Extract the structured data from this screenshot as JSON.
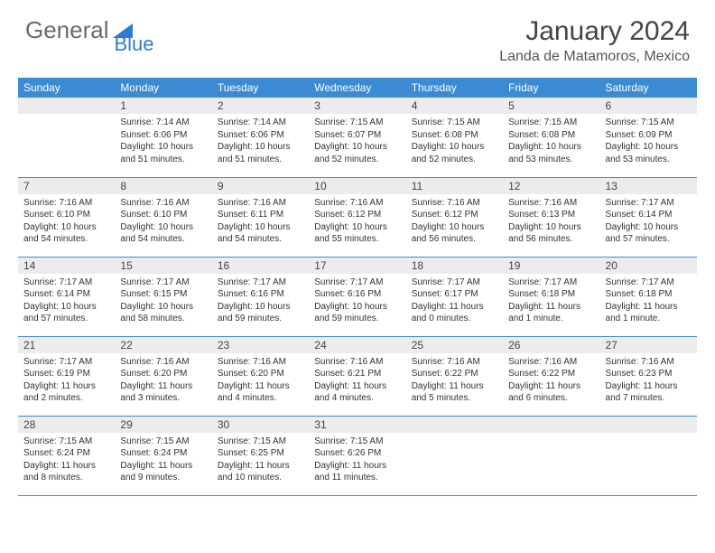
{
  "logo": {
    "text1": "General",
    "text2": "Blue"
  },
  "title": "January 2024",
  "location": "Landa de Matamoros, Mexico",
  "colors": {
    "header_bg": "#3b8bd4",
    "header_text": "#ffffff",
    "daynum_bg": "#ececec",
    "border": "#3b8bd4",
    "logo_gray": "#6b6b6b",
    "logo_blue": "#2e7cd1"
  },
  "daynames": [
    "Sunday",
    "Monday",
    "Tuesday",
    "Wednesday",
    "Thursday",
    "Friday",
    "Saturday"
  ],
  "weeks": [
    [
      {
        "n": "",
        "lines": []
      },
      {
        "n": "1",
        "lines": [
          "Sunrise: 7:14 AM",
          "Sunset: 6:06 PM",
          "Daylight: 10 hours",
          "and 51 minutes."
        ]
      },
      {
        "n": "2",
        "lines": [
          "Sunrise: 7:14 AM",
          "Sunset: 6:06 PM",
          "Daylight: 10 hours",
          "and 51 minutes."
        ]
      },
      {
        "n": "3",
        "lines": [
          "Sunrise: 7:15 AM",
          "Sunset: 6:07 PM",
          "Daylight: 10 hours",
          "and 52 minutes."
        ]
      },
      {
        "n": "4",
        "lines": [
          "Sunrise: 7:15 AM",
          "Sunset: 6:08 PM",
          "Daylight: 10 hours",
          "and 52 minutes."
        ]
      },
      {
        "n": "5",
        "lines": [
          "Sunrise: 7:15 AM",
          "Sunset: 6:08 PM",
          "Daylight: 10 hours",
          "and 53 minutes."
        ]
      },
      {
        "n": "6",
        "lines": [
          "Sunrise: 7:15 AM",
          "Sunset: 6:09 PM",
          "Daylight: 10 hours",
          "and 53 minutes."
        ]
      }
    ],
    [
      {
        "n": "7",
        "lines": [
          "Sunrise: 7:16 AM",
          "Sunset: 6:10 PM",
          "Daylight: 10 hours",
          "and 54 minutes."
        ]
      },
      {
        "n": "8",
        "lines": [
          "Sunrise: 7:16 AM",
          "Sunset: 6:10 PM",
          "Daylight: 10 hours",
          "and 54 minutes."
        ]
      },
      {
        "n": "9",
        "lines": [
          "Sunrise: 7:16 AM",
          "Sunset: 6:11 PM",
          "Daylight: 10 hours",
          "and 54 minutes."
        ]
      },
      {
        "n": "10",
        "lines": [
          "Sunrise: 7:16 AM",
          "Sunset: 6:12 PM",
          "Daylight: 10 hours",
          "and 55 minutes."
        ]
      },
      {
        "n": "11",
        "lines": [
          "Sunrise: 7:16 AM",
          "Sunset: 6:12 PM",
          "Daylight: 10 hours",
          "and 56 minutes."
        ]
      },
      {
        "n": "12",
        "lines": [
          "Sunrise: 7:16 AM",
          "Sunset: 6:13 PM",
          "Daylight: 10 hours",
          "and 56 minutes."
        ]
      },
      {
        "n": "13",
        "lines": [
          "Sunrise: 7:17 AM",
          "Sunset: 6:14 PM",
          "Daylight: 10 hours",
          "and 57 minutes."
        ]
      }
    ],
    [
      {
        "n": "14",
        "lines": [
          "Sunrise: 7:17 AM",
          "Sunset: 6:14 PM",
          "Daylight: 10 hours",
          "and 57 minutes."
        ]
      },
      {
        "n": "15",
        "lines": [
          "Sunrise: 7:17 AM",
          "Sunset: 6:15 PM",
          "Daylight: 10 hours",
          "and 58 minutes."
        ]
      },
      {
        "n": "16",
        "lines": [
          "Sunrise: 7:17 AM",
          "Sunset: 6:16 PM",
          "Daylight: 10 hours",
          "and 59 minutes."
        ]
      },
      {
        "n": "17",
        "lines": [
          "Sunrise: 7:17 AM",
          "Sunset: 6:16 PM",
          "Daylight: 10 hours",
          "and 59 minutes."
        ]
      },
      {
        "n": "18",
        "lines": [
          "Sunrise: 7:17 AM",
          "Sunset: 6:17 PM",
          "Daylight: 11 hours",
          "and 0 minutes."
        ]
      },
      {
        "n": "19",
        "lines": [
          "Sunrise: 7:17 AM",
          "Sunset: 6:18 PM",
          "Daylight: 11 hours",
          "and 1 minute."
        ]
      },
      {
        "n": "20",
        "lines": [
          "Sunrise: 7:17 AM",
          "Sunset: 6:18 PM",
          "Daylight: 11 hours",
          "and 1 minute."
        ]
      }
    ],
    [
      {
        "n": "21",
        "lines": [
          "Sunrise: 7:17 AM",
          "Sunset: 6:19 PM",
          "Daylight: 11 hours",
          "and 2 minutes."
        ]
      },
      {
        "n": "22",
        "lines": [
          "Sunrise: 7:16 AM",
          "Sunset: 6:20 PM",
          "Daylight: 11 hours",
          "and 3 minutes."
        ]
      },
      {
        "n": "23",
        "lines": [
          "Sunrise: 7:16 AM",
          "Sunset: 6:20 PM",
          "Daylight: 11 hours",
          "and 4 minutes."
        ]
      },
      {
        "n": "24",
        "lines": [
          "Sunrise: 7:16 AM",
          "Sunset: 6:21 PM",
          "Daylight: 11 hours",
          "and 4 minutes."
        ]
      },
      {
        "n": "25",
        "lines": [
          "Sunrise: 7:16 AM",
          "Sunset: 6:22 PM",
          "Daylight: 11 hours",
          "and 5 minutes."
        ]
      },
      {
        "n": "26",
        "lines": [
          "Sunrise: 7:16 AM",
          "Sunset: 6:22 PM",
          "Daylight: 11 hours",
          "and 6 minutes."
        ]
      },
      {
        "n": "27",
        "lines": [
          "Sunrise: 7:16 AM",
          "Sunset: 6:23 PM",
          "Daylight: 11 hours",
          "and 7 minutes."
        ]
      }
    ],
    [
      {
        "n": "28",
        "lines": [
          "Sunrise: 7:15 AM",
          "Sunset: 6:24 PM",
          "Daylight: 11 hours",
          "and 8 minutes."
        ]
      },
      {
        "n": "29",
        "lines": [
          "Sunrise: 7:15 AM",
          "Sunset: 6:24 PM",
          "Daylight: 11 hours",
          "and 9 minutes."
        ]
      },
      {
        "n": "30",
        "lines": [
          "Sunrise: 7:15 AM",
          "Sunset: 6:25 PM",
          "Daylight: 11 hours",
          "and 10 minutes."
        ]
      },
      {
        "n": "31",
        "lines": [
          "Sunrise: 7:15 AM",
          "Sunset: 6:26 PM",
          "Daylight: 11 hours",
          "and 11 minutes."
        ]
      },
      {
        "n": "",
        "lines": []
      },
      {
        "n": "",
        "lines": []
      },
      {
        "n": "",
        "lines": []
      }
    ]
  ]
}
